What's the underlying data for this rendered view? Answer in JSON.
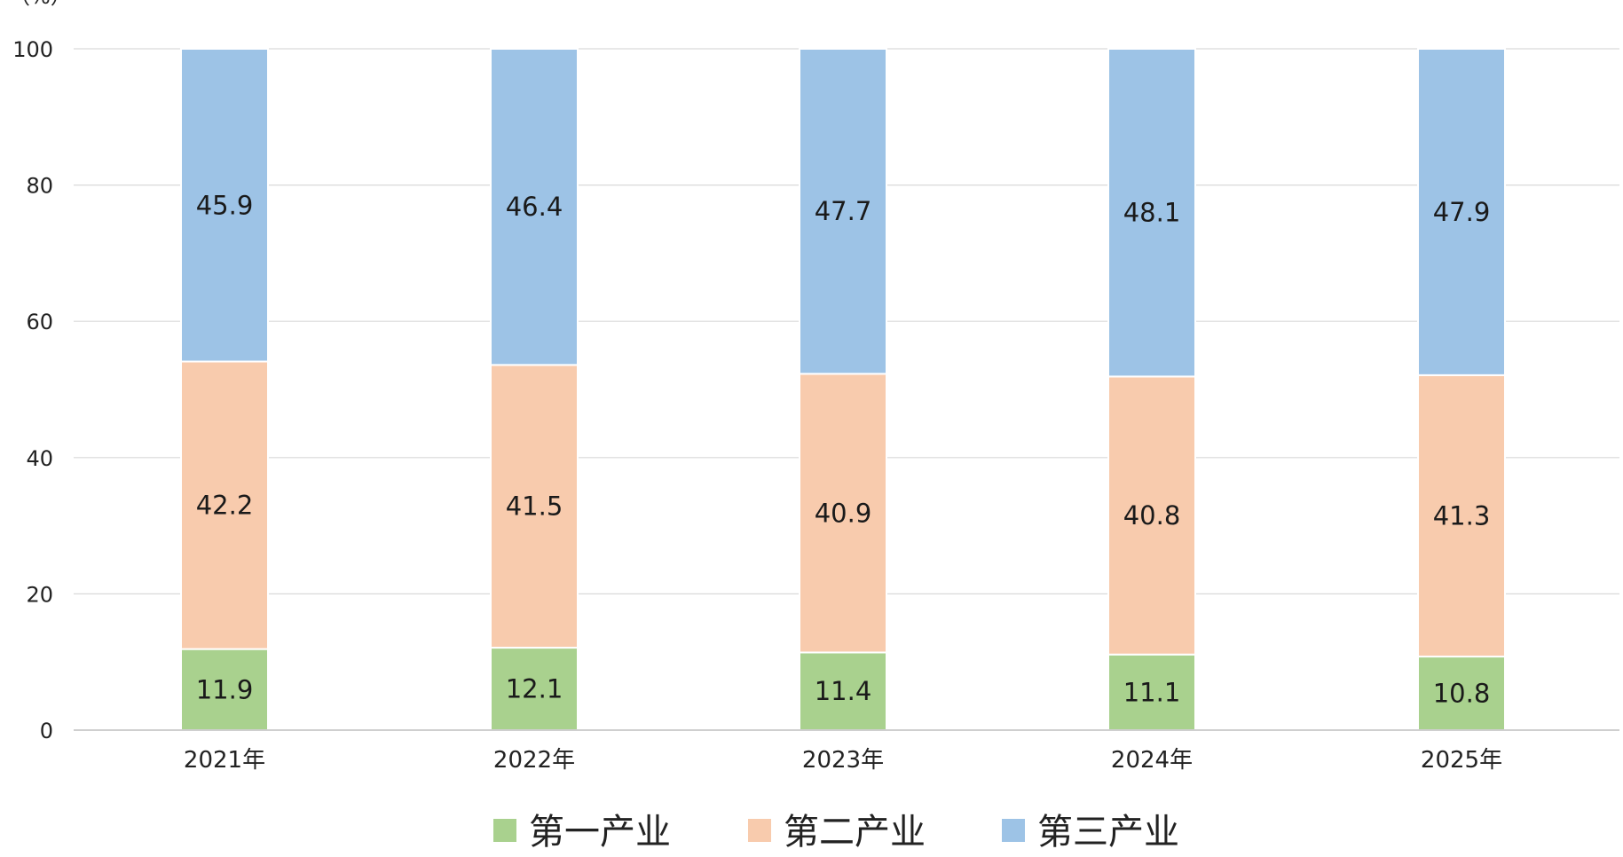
{
  "chart_data": {
    "type": "bar",
    "stacked": true,
    "y_unit": "（%）",
    "categories": [
      "2021年",
      "2022年",
      "2023年",
      "2024年",
      "2025年"
    ],
    "series": [
      {
        "name": "第一产业",
        "values": [
          11.9,
          12.1,
          11.4,
          11.1,
          10.8
        ],
        "color": "#a9d18e"
      },
      {
        "name": "第二产业",
        "values": [
          42.2,
          41.5,
          40.9,
          40.8,
          41.3
        ],
        "color": "#f8cbad"
      },
      {
        "name": "第三产业",
        "values": [
          45.9,
          46.4,
          47.7,
          48.1,
          47.9
        ],
        "color": "#9dc3e6"
      }
    ],
    "ylim": [
      0,
      100
    ],
    "yticks": [
      0,
      20,
      40,
      60,
      80,
      100
    ],
    "grid": true,
    "legend": "bottom",
    "colors": {
      "grid": "#d9d9d9",
      "axis": "#bfbfbf",
      "bar_separator": "#ffffff"
    }
  }
}
